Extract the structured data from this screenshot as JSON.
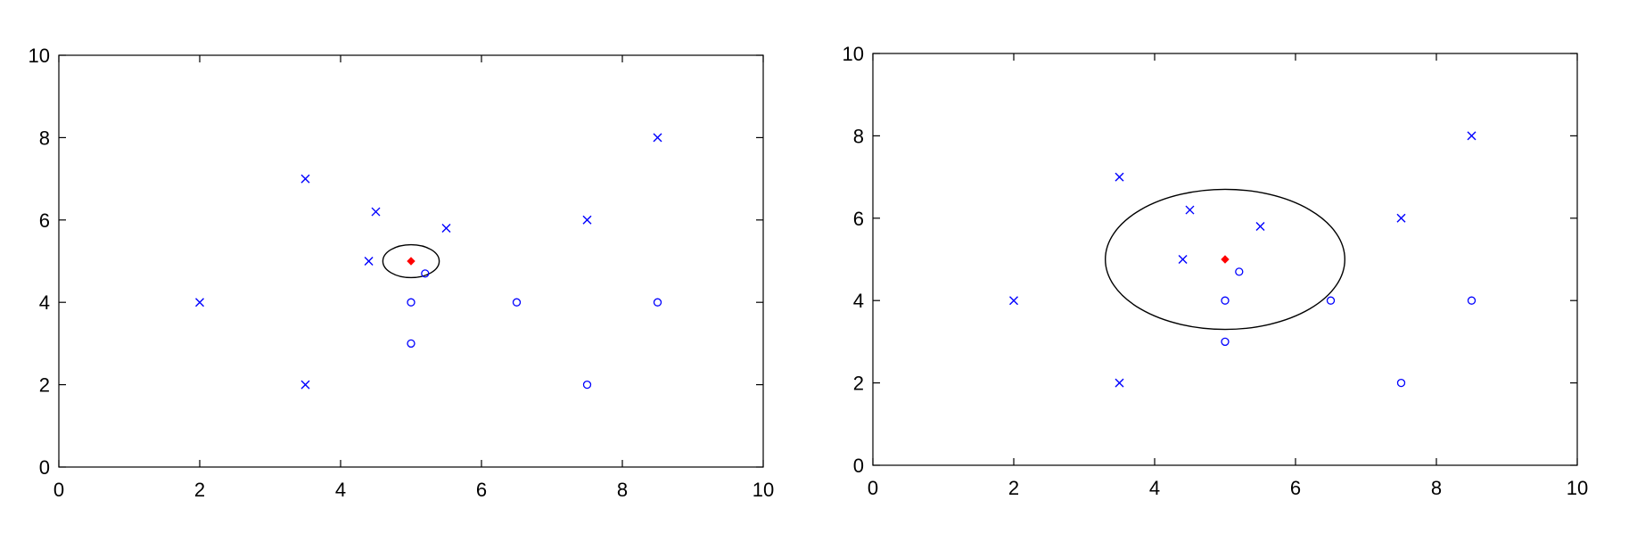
{
  "chart_data": [
    {
      "type": "scatter",
      "xlim": [
        0,
        10
      ],
      "ylim": [
        0,
        10
      ],
      "x_ticks": [
        "0",
        "2",
        "4",
        "6",
        "8",
        "10"
      ],
      "y_ticks": [
        "0",
        "2",
        "4",
        "6",
        "8",
        "10"
      ],
      "grid": false,
      "series": [
        {
          "marker": "x",
          "color": "#0000ff",
          "points": [
            [
              2,
              4
            ],
            [
              3.5,
              7
            ],
            [
              3.5,
              2
            ],
            [
              4.4,
              5
            ],
            [
              4.5,
              6.2
            ],
            [
              5.5,
              5.8
            ],
            [
              7.5,
              6
            ],
            [
              8.5,
              8
            ]
          ]
        },
        {
          "marker": "circle",
          "color": "#0000ff",
          "points": [
            [
              5.2,
              4.7
            ],
            [
              5,
              4
            ],
            [
              5,
              3
            ],
            [
              6.5,
              4
            ],
            [
              7.5,
              2
            ],
            [
              8.5,
              4
            ]
          ]
        },
        {
          "marker": "diamond",
          "color": "#ff0000",
          "points": [
            [
              5,
              5
            ]
          ]
        }
      ],
      "neighborhood_circle": {
        "center": [
          5,
          5
        ],
        "radius": 0.4
      }
    },
    {
      "type": "scatter",
      "xlim": [
        0,
        10
      ],
      "ylim": [
        0,
        10
      ],
      "x_ticks": [
        "0",
        "2",
        "4",
        "6",
        "8",
        "10"
      ],
      "y_ticks": [
        "0",
        "2",
        "4",
        "6",
        "8",
        "10"
      ],
      "grid": false,
      "series": [
        {
          "marker": "x",
          "color": "#0000ff",
          "points": [
            [
              2,
              4
            ],
            [
              3.5,
              7
            ],
            [
              3.5,
              2
            ],
            [
              4.4,
              5
            ],
            [
              4.5,
              6.2
            ],
            [
              5.5,
              5.8
            ],
            [
              7.5,
              6
            ],
            [
              8.5,
              8
            ]
          ]
        },
        {
          "marker": "circle",
          "color": "#0000ff",
          "points": [
            [
              5.2,
              4.7
            ],
            [
              5,
              4
            ],
            [
              5,
              3
            ],
            [
              6.5,
              4
            ],
            [
              7.5,
              2
            ],
            [
              8.5,
              4
            ]
          ]
        },
        {
          "marker": "diamond",
          "color": "#ff0000",
          "points": [
            [
              5,
              5
            ]
          ]
        }
      ],
      "neighborhood_circle": {
        "center": [
          5,
          5
        ],
        "radius": 1.7
      }
    }
  ]
}
